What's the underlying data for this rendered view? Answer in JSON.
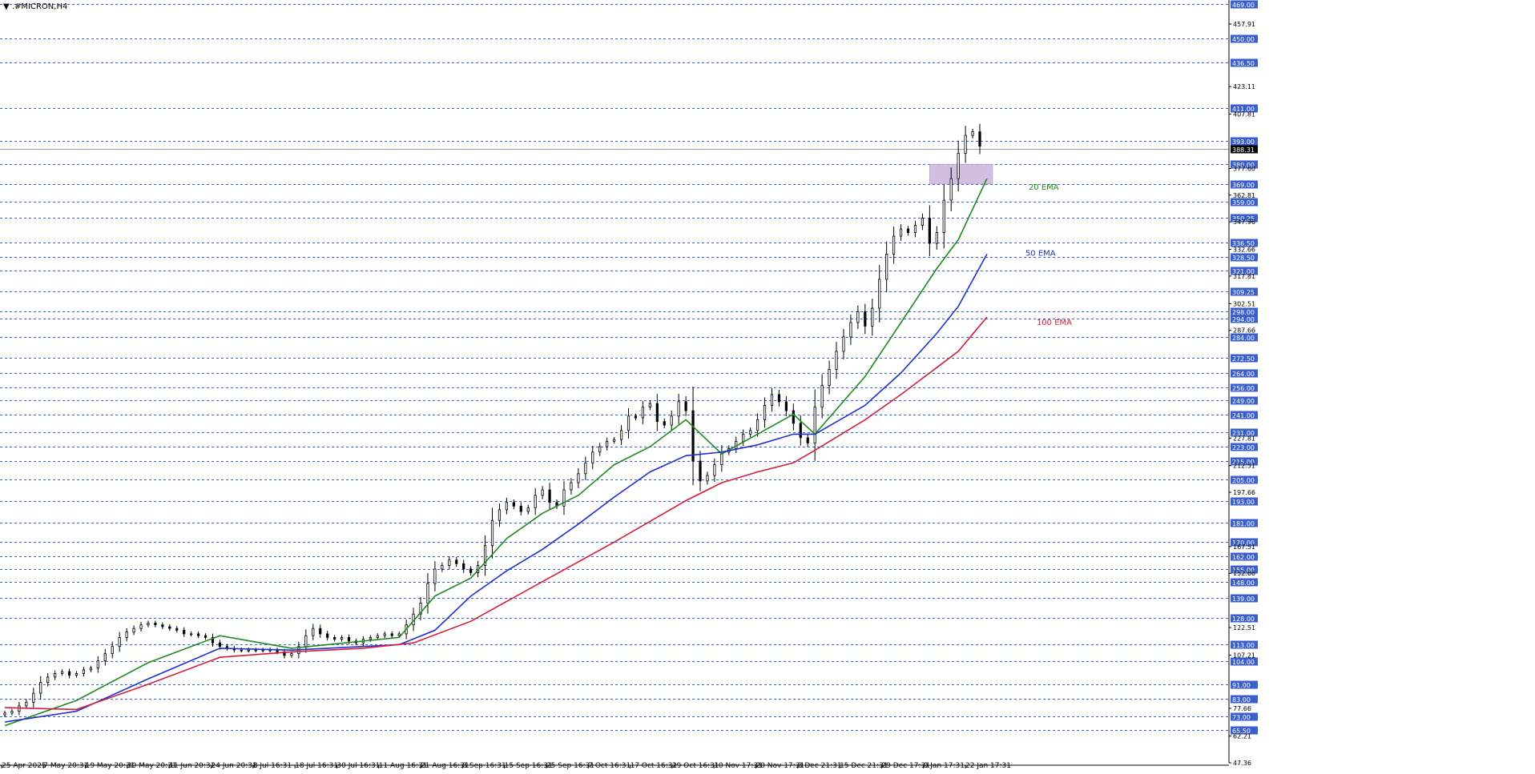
{
  "symbol_title": "▼ .#MICRON,H4",
  "current_price": "388.31",
  "colors": {
    "background": "#ffffff",
    "level_line": "#3a5fcd",
    "level_tag_bg": "#3a5fcd",
    "candle": "#000000",
    "ema20": "#1c8a1c",
    "ema50": "#1f2fd1",
    "ema100": "#d21e3c",
    "zone_fill": "#c9b3dc",
    "price_line": "#9a9a9a"
  },
  "levels": [
    "469.00",
    "450.00",
    "436.50",
    "411.00",
    "393.00",
    "380.00",
    "369.00",
    "359.00",
    "350.25",
    "336.50",
    "328.50",
    "321.00",
    "309.25",
    "298.00",
    "294.00",
    "284.00",
    "272.50",
    "264.00",
    "256.00",
    "249.00",
    "241.00",
    "231.00",
    "223.00",
    "215.00",
    "205.00",
    "193.00",
    "181.00",
    "170.00",
    "162.00",
    "155.00",
    "148.00",
    "139.00",
    "128.00",
    "113.00",
    "104.00",
    "91.00",
    "83.00",
    "73.00",
    "65.50"
  ],
  "axis_ticks": [
    "457.91",
    "423.11",
    "407.81",
    "377.60",
    "362.81",
    "347.96",
    "332.66",
    "317.81",
    "302.51",
    "287.66",
    "227.81",
    "212.51",
    "197.66",
    "167.51",
    "152.66",
    "122.51",
    "107.21",
    "77.66",
    "62.21",
    "47.36"
  ],
  "x_ticks": [
    "25 Apr 2025",
    "7 May 20:31",
    "19 May 20:31",
    "30 May 20:31",
    "11 Jun 20:31",
    "24 Jun 20:31",
    "8 Jul 16:31",
    "18 Jul 16:31",
    "30 Jul 16:31",
    "11 Aug 16:31",
    "21 Aug 16:31",
    "3 Sep 16:31",
    "15 Sep 16:31",
    "25 Sep 16:31",
    "7 Oct 16:31",
    "17 Oct 16:31",
    "29 Oct 16:31",
    "10 Nov 17:31",
    "20 Nov 17:31",
    "3 Dec 21:31",
    "15 Dec 21:31",
    "29 Dec 17:31",
    "9 Jan 17:31",
    "22 Jan 17:31"
  ],
  "ema_labels": {
    "ema20": "20 EMA",
    "ema50": "50 EMA",
    "ema100": "100 EMA"
  },
  "chart_data": {
    "type": "candlestick",
    "symbol": ".#MICRON",
    "timeframe": "H4",
    "ylim": [
      47.36,
      469.0
    ],
    "grid": false,
    "price_closes": [
      75,
      76,
      79,
      81,
      86,
      92,
      95,
      97,
      98,
      96,
      97,
      99,
      100,
      104,
      108,
      112,
      117,
      120,
      122,
      124,
      125,
      124,
      123,
      122,
      121,
      119,
      119,
      118,
      117,
      114,
      112,
      111,
      110,
      110,
      110,
      110,
      110,
      110,
      109,
      107,
      108,
      112,
      118,
      122,
      119,
      117,
      116,
      117,
      115,
      114,
      116,
      117,
      118,
      119,
      118,
      119,
      124,
      130,
      136,
      147,
      155,
      157,
      160,
      158,
      155,
      153,
      157,
      168,
      182,
      188,
      192,
      190,
      187,
      189,
      196,
      199,
      192,
      190,
      199,
      203,
      208,
      214,
      220,
      223,
      226,
      227,
      232,
      240,
      239,
      245,
      247,
      237,
      235,
      240,
      248,
      243,
      215,
      204,
      207,
      213,
      220,
      222,
      226,
      230,
      232,
      238,
      246,
      252,
      248,
      243,
      236,
      228,
      225,
      245,
      257,
      266,
      276,
      284,
      292,
      298,
      290,
      300,
      316,
      330,
      340,
      344,
      342,
      346,
      350,
      336,
      342,
      360,
      372,
      386,
      396,
      398,
      390
    ],
    "support_zone": [
      369.0,
      380.0
    ],
    "ema20": [
      {
        "x": 0,
        "y": 68
      },
      {
        "x": 10,
        "y": 82
      },
      {
        "x": 20,
        "y": 103
      },
      {
        "x": 30,
        "y": 118
      },
      {
        "x": 40,
        "y": 111
      },
      {
        "x": 45,
        "y": 113
      },
      {
        "x": 55,
        "y": 117
      },
      {
        "x": 60,
        "y": 140
      },
      {
        "x": 65,
        "y": 150
      },
      {
        "x": 70,
        "y": 172
      },
      {
        "x": 75,
        "y": 186
      },
      {
        "x": 80,
        "y": 196
      },
      {
        "x": 85,
        "y": 213
      },
      {
        "x": 90,
        "y": 223
      },
      {
        "x": 95,
        "y": 238
      },
      {
        "x": 100,
        "y": 219
      },
      {
        "x": 105,
        "y": 230
      },
      {
        "x": 110,
        "y": 241
      },
      {
        "x": 113,
        "y": 230
      },
      {
        "x": 120,
        "y": 262
      },
      {
        "x": 125,
        "y": 292
      },
      {
        "x": 130,
        "y": 322
      },
      {
        "x": 133,
        "y": 338
      },
      {
        "x": 137,
        "y": 372
      }
    ],
    "ema50": [
      {
        "x": 0,
        "y": 70
      },
      {
        "x": 10,
        "y": 76
      },
      {
        "x": 20,
        "y": 94
      },
      {
        "x": 30,
        "y": 111
      },
      {
        "x": 40,
        "y": 110
      },
      {
        "x": 55,
        "y": 113
      },
      {
        "x": 60,
        "y": 121
      },
      {
        "x": 65,
        "y": 140
      },
      {
        "x": 70,
        "y": 154
      },
      {
        "x": 75,
        "y": 166
      },
      {
        "x": 80,
        "y": 180
      },
      {
        "x": 85,
        "y": 195
      },
      {
        "x": 90,
        "y": 209
      },
      {
        "x": 95,
        "y": 218
      },
      {
        "x": 100,
        "y": 220
      },
      {
        "x": 105,
        "y": 224
      },
      {
        "x": 110,
        "y": 230
      },
      {
        "x": 113,
        "y": 230
      },
      {
        "x": 120,
        "y": 246
      },
      {
        "x": 125,
        "y": 264
      },
      {
        "x": 130,
        "y": 286
      },
      {
        "x": 133,
        "y": 301
      },
      {
        "x": 137,
        "y": 330
      }
    ],
    "ema100": [
      {
        "x": 0,
        "y": 78
      },
      {
        "x": 10,
        "y": 77
      },
      {
        "x": 20,
        "y": 91
      },
      {
        "x": 30,
        "y": 106
      },
      {
        "x": 40,
        "y": 109
      },
      {
        "x": 50,
        "y": 111
      },
      {
        "x": 57,
        "y": 114
      },
      {
        "x": 65,
        "y": 126
      },
      {
        "x": 75,
        "y": 148
      },
      {
        "x": 85,
        "y": 170
      },
      {
        "x": 95,
        "y": 193
      },
      {
        "x": 100,
        "y": 203
      },
      {
        "x": 105,
        "y": 209
      },
      {
        "x": 110,
        "y": 214
      },
      {
        "x": 113,
        "y": 221
      },
      {
        "x": 120,
        "y": 238
      },
      {
        "x": 125,
        "y": 252
      },
      {
        "x": 130,
        "y": 267
      },
      {
        "x": 133,
        "y": 276
      },
      {
        "x": 137,
        "y": 295
      }
    ]
  }
}
